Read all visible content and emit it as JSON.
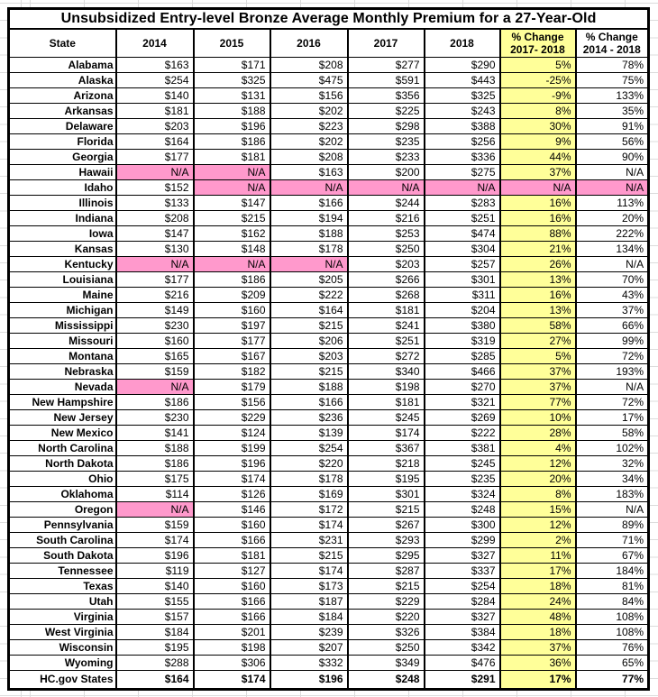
{
  "colors": {
    "highlight_yellow": "#FFFF99",
    "highlight_pink": "#FF99CC",
    "border_black": "#000000",
    "gridline_gray": "#DCDCDC"
  },
  "chart_data": {
    "type": "table",
    "title": "Unsubsidized Entry-level Bronze Average Monthly Premium for a 27-Year-Old",
    "columns": [
      {
        "id": "state",
        "label": "State"
      },
      {
        "id": "2014",
        "label": "2014"
      },
      {
        "id": "2015",
        "label": "2015"
      },
      {
        "id": "2016",
        "label": "2016"
      },
      {
        "id": "2017",
        "label": "2017"
      },
      {
        "id": "2018",
        "label": "2018"
      },
      {
        "id": "pct-change-2017-2018",
        "label": "% Change",
        "sub": "2017- 2018",
        "bg": "yellow"
      },
      {
        "id": "pct-change-2014-2018",
        "label": "% Change",
        "sub": "2014 - 2018"
      }
    ],
    "legend": {
      "yellow_column_meaning": "% Change 2017-2018 highlighted yellow",
      "pink_cell_meaning": "N/A (no data) highlighted pink"
    },
    "rows": [
      {
        "state": "Alabama",
        "values": [
          "$163",
          "$171",
          "$208",
          "$277",
          "$290",
          "5%",
          "78%"
        ]
      },
      {
        "state": "Alaska",
        "values": [
          "$254",
          "$325",
          "$475",
          "$591",
          "$443",
          "-25%",
          "75%"
        ]
      },
      {
        "state": "Arizona",
        "values": [
          "$140",
          "$131",
          "$156",
          "$356",
          "$325",
          "-9%",
          "133%"
        ]
      },
      {
        "state": "Arkansas",
        "values": [
          "$181",
          "$188",
          "$202",
          "$225",
          "$243",
          "8%",
          "35%"
        ]
      },
      {
        "state": "Delaware",
        "values": [
          "$203",
          "$196",
          "$223",
          "$298",
          "$388",
          "30%",
          "91%"
        ]
      },
      {
        "state": "Florida",
        "values": [
          "$164",
          "$186",
          "$202",
          "$235",
          "$256",
          "9%",
          "56%"
        ]
      },
      {
        "state": "Georgia",
        "values": [
          "$177",
          "$181",
          "$208",
          "$233",
          "$336",
          "44%",
          "90%"
        ]
      },
      {
        "state": "Hawaii",
        "values": [
          "N/A",
          "N/A",
          "$163",
          "$200",
          "$275",
          "37%",
          "N/A"
        ],
        "pink": [
          0,
          1
        ]
      },
      {
        "state": "Idaho",
        "values": [
          "$152",
          "N/A",
          "N/A",
          "N/A",
          "N/A",
          "N/A",
          "N/A"
        ],
        "pink": [
          1,
          2,
          3,
          4,
          5,
          6
        ]
      },
      {
        "state": "Illinois",
        "values": [
          "$133",
          "$147",
          "$166",
          "$244",
          "$283",
          "16%",
          "113%"
        ]
      },
      {
        "state": "Indiana",
        "values": [
          "$208",
          "$215",
          "$194",
          "$216",
          "$251",
          "16%",
          "20%"
        ]
      },
      {
        "state": "Iowa",
        "values": [
          "$147",
          "$162",
          "$188",
          "$253",
          "$474",
          "88%",
          "222%"
        ]
      },
      {
        "state": "Kansas",
        "values": [
          "$130",
          "$148",
          "$178",
          "$250",
          "$304",
          "21%",
          "134%"
        ]
      },
      {
        "state": "Kentucky",
        "values": [
          "N/A",
          "N/A",
          "N/A",
          "$203",
          "$257",
          "26%",
          "N/A"
        ],
        "pink": [
          0,
          1,
          2
        ]
      },
      {
        "state": "Louisiana",
        "values": [
          "$177",
          "$186",
          "$205",
          "$266",
          "$301",
          "13%",
          "70%"
        ]
      },
      {
        "state": "Maine",
        "values": [
          "$216",
          "$209",
          "$222",
          "$268",
          "$311",
          "16%",
          "43%"
        ]
      },
      {
        "state": "Michigan",
        "values": [
          "$149",
          "$160",
          "$164",
          "$181",
          "$204",
          "13%",
          "37%"
        ]
      },
      {
        "state": "Mississippi",
        "values": [
          "$230",
          "$197",
          "$215",
          "$241",
          "$380",
          "58%",
          "66%"
        ]
      },
      {
        "state": "Missouri",
        "values": [
          "$160",
          "$177",
          "$206",
          "$251",
          "$319",
          "27%",
          "99%"
        ]
      },
      {
        "state": "Montana",
        "values": [
          "$165",
          "$167",
          "$203",
          "$272",
          "$285",
          "5%",
          "72%"
        ]
      },
      {
        "state": "Nebraska",
        "values": [
          "$159",
          "$182",
          "$215",
          "$340",
          "$466",
          "37%",
          "193%"
        ]
      },
      {
        "state": "Nevada",
        "values": [
          "N/A",
          "$179",
          "$188",
          "$198",
          "$270",
          "37%",
          "N/A"
        ],
        "pink": [
          0
        ]
      },
      {
        "state": "New Hampshire",
        "values": [
          "$186",
          "$156",
          "$166",
          "$181",
          "$321",
          "77%",
          "72%"
        ]
      },
      {
        "state": "New Jersey",
        "values": [
          "$230",
          "$229",
          "$236",
          "$245",
          "$269",
          "10%",
          "17%"
        ]
      },
      {
        "state": "New Mexico",
        "values": [
          "$141",
          "$124",
          "$139",
          "$174",
          "$222",
          "28%",
          "58%"
        ]
      },
      {
        "state": "North Carolina",
        "values": [
          "$188",
          "$199",
          "$254",
          "$367",
          "$381",
          "4%",
          "102%"
        ]
      },
      {
        "state": "North Dakota",
        "values": [
          "$186",
          "$196",
          "$220",
          "$218",
          "$245",
          "12%",
          "32%"
        ]
      },
      {
        "state": "Ohio",
        "values": [
          "$175",
          "$174",
          "$178",
          "$195",
          "$235",
          "20%",
          "34%"
        ]
      },
      {
        "state": "Oklahoma",
        "values": [
          "$114",
          "$126",
          "$169",
          "$301",
          "$324",
          "8%",
          "183%"
        ]
      },
      {
        "state": "Oregon",
        "values": [
          "N/A",
          "$146",
          "$172",
          "$215",
          "$248",
          "15%",
          "N/A"
        ],
        "pink": [
          0
        ]
      },
      {
        "state": "Pennsylvania",
        "values": [
          "$159",
          "$160",
          "$174",
          "$267",
          "$300",
          "12%",
          "89%"
        ]
      },
      {
        "state": "South Carolina",
        "values": [
          "$174",
          "$166",
          "$231",
          "$293",
          "$299",
          "2%",
          "71%"
        ]
      },
      {
        "state": "South Dakota",
        "values": [
          "$196",
          "$181",
          "$215",
          "$295",
          "$327",
          "11%",
          "67%"
        ]
      },
      {
        "state": "Tennessee",
        "values": [
          "$119",
          "$127",
          "$174",
          "$287",
          "$337",
          "17%",
          "184%"
        ]
      },
      {
        "state": "Texas",
        "values": [
          "$140",
          "$160",
          "$173",
          "$215",
          "$254",
          "18%",
          "81%"
        ]
      },
      {
        "state": "Utah",
        "values": [
          "$155",
          "$166",
          "$187",
          "$229",
          "$284",
          "24%",
          "84%"
        ]
      },
      {
        "state": "Virginia",
        "values": [
          "$157",
          "$166",
          "$184",
          "$220",
          "$327",
          "48%",
          "108%"
        ]
      },
      {
        "state": "West Virginia",
        "values": [
          "$184",
          "$201",
          "$239",
          "$326",
          "$384",
          "18%",
          "108%"
        ]
      },
      {
        "state": "Wisconsin",
        "values": [
          "$195",
          "$198",
          "$207",
          "$250",
          "$342",
          "37%",
          "76%"
        ]
      },
      {
        "state": "Wyoming",
        "values": [
          "$288",
          "$306",
          "$332",
          "$349",
          "$476",
          "36%",
          "65%"
        ]
      },
      {
        "state": "HC.gov States",
        "values": [
          "$164",
          "$174",
          "$196",
          "$248",
          "$291",
          "17%",
          "77%"
        ],
        "bold": true
      }
    ]
  }
}
